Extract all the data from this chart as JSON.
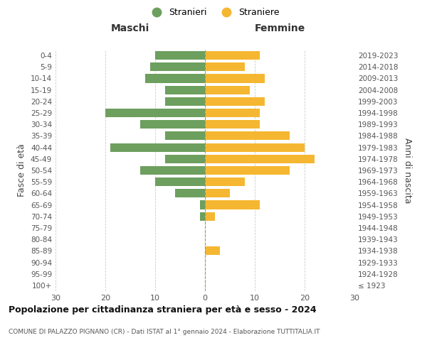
{
  "age_groups": [
    "100+",
    "95-99",
    "90-94",
    "85-89",
    "80-84",
    "75-79",
    "70-74",
    "65-69",
    "60-64",
    "55-59",
    "50-54",
    "45-49",
    "40-44",
    "35-39",
    "30-34",
    "25-29",
    "20-24",
    "15-19",
    "10-14",
    "5-9",
    "0-4"
  ],
  "birth_years": [
    "≤ 1923",
    "1924-1928",
    "1929-1933",
    "1934-1938",
    "1939-1943",
    "1944-1948",
    "1949-1953",
    "1954-1958",
    "1959-1963",
    "1964-1968",
    "1969-1973",
    "1974-1978",
    "1979-1983",
    "1984-1988",
    "1989-1993",
    "1994-1998",
    "1999-2003",
    "2004-2008",
    "2009-2013",
    "2014-2018",
    "2019-2023"
  ],
  "males": [
    0,
    0,
    0,
    0,
    0,
    0,
    1,
    1,
    6,
    10,
    13,
    8,
    19,
    8,
    13,
    20,
    8,
    8,
    12,
    11,
    10
  ],
  "females": [
    0,
    0,
    0,
    3,
    0,
    0,
    2,
    11,
    5,
    8,
    17,
    22,
    20,
    17,
    11,
    11,
    12,
    9,
    12,
    8,
    11
  ],
  "male_color": "#6d9f5e",
  "female_color": "#f5b731",
  "title": "Popolazione per cittadinanza straniera per età e sesso - 2024",
  "subtitle": "COMUNE DI PALAZZO PIGNANO (CR) - Dati ISTAT al 1° gennaio 2024 - Elaborazione TUTTITALIA.IT",
  "ylabel_left": "Fasce di età",
  "ylabel_right": "Anni di nascita",
  "xlabel_left": "Maschi",
  "xlabel_right": "Femmine",
  "legend_stranieri": "Stranieri",
  "legend_straniere": "Straniere",
  "xlim": 30,
  "background_color": "#ffffff",
  "grid_color": "#cccccc"
}
